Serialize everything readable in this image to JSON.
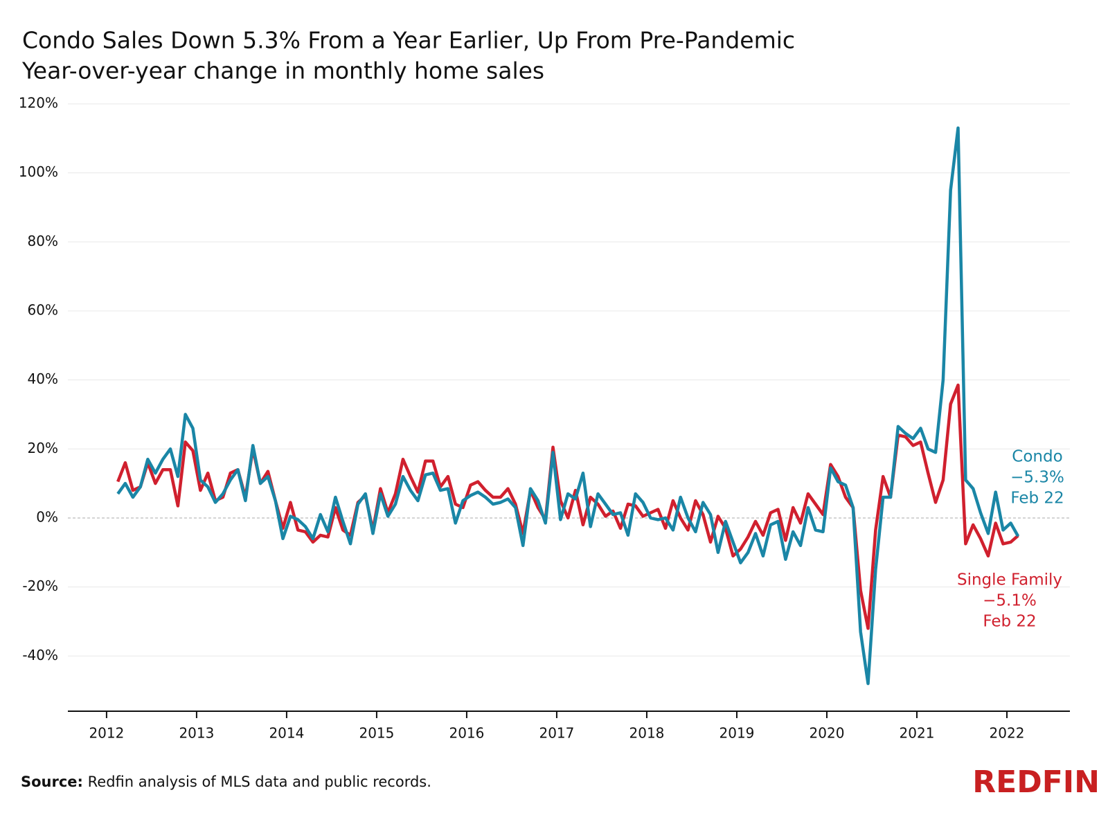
{
  "chart_data": {
    "type": "line",
    "title": "Condo Sales Down 5.3% From a Year Earlier, Up From Pre-Pandemic",
    "subtitle": "Year-over-year change in monthly home sales",
    "x": [
      2012.125,
      2012.208,
      2012.292,
      2012.375,
      2012.458,
      2012.542,
      2012.625,
      2012.708,
      2012.792,
      2012.875,
      2012.958,
      2013.042,
      2013.125,
      2013.208,
      2013.292,
      2013.375,
      2013.458,
      2013.542,
      2013.625,
      2013.708,
      2013.792,
      2013.875,
      2013.958,
      2014.042,
      2014.125,
      2014.208,
      2014.292,
      2014.375,
      2014.458,
      2014.542,
      2014.625,
      2014.708,
      2014.792,
      2014.875,
      2014.958,
      2015.042,
      2015.125,
      2015.208,
      2015.292,
      2015.375,
      2015.458,
      2015.542,
      2015.625,
      2015.708,
      2015.792,
      2015.875,
      2015.958,
      2016.042,
      2016.125,
      2016.208,
      2016.292,
      2016.375,
      2016.458,
      2016.542,
      2016.625,
      2016.708,
      2016.792,
      2016.875,
      2016.958,
      2017.042,
      2017.125,
      2017.208,
      2017.292,
      2017.375,
      2017.458,
      2017.542,
      2017.625,
      2017.708,
      2017.792,
      2017.875,
      2017.958,
      2018.042,
      2018.125,
      2018.208,
      2018.292,
      2018.375,
      2018.458,
      2018.542,
      2018.625,
      2018.708,
      2018.792,
      2018.875,
      2018.958,
      2019.042,
      2019.125,
      2019.208,
      2019.292,
      2019.375,
      2019.458,
      2019.542,
      2019.625,
      2019.708,
      2019.792,
      2019.875,
      2019.958,
      2020.042,
      2020.125,
      2020.208,
      2020.292,
      2020.375,
      2020.458,
      2020.542,
      2020.625,
      2020.708,
      2020.792,
      2020.875,
      2020.958,
      2021.042,
      2021.125,
      2021.208,
      2021.292,
      2021.375,
      2021.458,
      2021.542,
      2021.625,
      2021.708,
      2021.792,
      2021.875,
      2021.958,
      2022.042,
      2022.125
    ],
    "series": [
      {
        "name": "Single Family",
        "color": "#d0202e",
        "values": [
          10.5,
          16,
          8,
          9,
          16,
          10,
          14,
          14,
          3.5,
          22,
          19.5,
          8,
          13,
          5,
          6,
          13,
          14,
          6,
          20,
          10,
          13.5,
          5,
          -3,
          4.5,
          -3.5,
          -4,
          -7,
          -5,
          -5.5,
          3,
          -3.5,
          -5,
          4.5,
          6.5,
          -3.5,
          8.5,
          1.5,
          7,
          17,
          12,
          7.5,
          16.5,
          16.5,
          9,
          12,
          4,
          3,
          9.5,
          10.5,
          8,
          6,
          6,
          8.5,
          4,
          -4.5,
          8,
          3,
          -0.5,
          20.5,
          5,
          0,
          8,
          -2,
          6,
          4,
          0.5,
          2,
          -3,
          4,
          3.5,
          0.5,
          1.5,
          2.5,
          -3,
          5,
          0,
          -3.5,
          5,
          1,
          -7,
          0.5,
          -3,
          -11,
          -9,
          -5.5,
          -1,
          -5,
          1.5,
          2.5,
          -6.5,
          3,
          -1.5,
          7,
          4,
          1,
          15.5,
          12,
          6,
          3,
          -21,
          -32,
          -3.5,
          12,
          6,
          24,
          23.5,
          21,
          22,
          13,
          4.5,
          11,
          33,
          38.5,
          -7.5,
          -2,
          -6,
          -11,
          -1.5,
          -7.5,
          -7,
          -5.1
        ]
      },
      {
        "name": "Condo",
        "color": "#1a86a6",
        "values": [
          7,
          10,
          6,
          9,
          17,
          13,
          17,
          20,
          12,
          30,
          26,
          11,
          9,
          4.5,
          7,
          11,
          14,
          5,
          21,
          10,
          12,
          5,
          -6,
          0.5,
          -0.5,
          -2.5,
          -6,
          1,
          -4,
          6,
          -1,
          -7.5,
          4,
          7,
          -4.5,
          7,
          0.5,
          4,
          12,
          8,
          5,
          12.5,
          13,
          8,
          8.5,
          -1.5,
          5,
          6.5,
          7.5,
          6,
          4,
          4.5,
          5.5,
          3,
          -8,
          8.5,
          5,
          -1.5,
          19,
          -0.5,
          7,
          5.5,
          13,
          -2.5,
          7,
          4,
          1,
          1.5,
          -5,
          7,
          4.5,
          0,
          -0.5,
          0,
          -3.5,
          6,
          0,
          -4,
          4.5,
          1,
          -10,
          -1,
          -7,
          -13,
          -10,
          -4.5,
          -11,
          -2,
          -1,
          -12,
          -4,
          -8,
          3,
          -3.5,
          -4,
          14.5,
          10.5,
          9.5,
          3,
          -33,
          -48,
          -15,
          6,
          6,
          26.5,
          24.5,
          23,
          26,
          20,
          19,
          40,
          95,
          113,
          11,
          8.5,
          1.5,
          -4.5,
          7.5,
          -3.5,
          -1.5,
          -5.3
        ]
      }
    ],
    "annotations": [
      [
        "Condo",
        "−5.3%",
        "Feb 22"
      ],
      [
        "Single Family",
        "−5.1%",
        "Feb 22"
      ]
    ],
    "xlim": [
      2011.57,
      2022.7
    ],
    "xticks": [
      2012,
      2013,
      2014,
      2015,
      2016,
      2017,
      2018,
      2019,
      2020,
      2021,
      2022
    ],
    "ylim": [
      -56,
      122
    ],
    "yticks": [
      {
        "value": -40,
        "label": "-40%"
      },
      {
        "value": -20,
        "label": "-20%"
      },
      {
        "value": 0,
        "label": "0%"
      },
      {
        "value": 20,
        "label": "20%"
      },
      {
        "value": 40,
        "label": "40%"
      },
      {
        "value": 60,
        "label": "60%"
      },
      {
        "value": 80,
        "label": "80%"
      },
      {
        "value": 100,
        "label": "100%"
      },
      {
        "value": 120,
        "label": "120%"
      }
    ],
    "grid": true,
    "source_label": "Source:",
    "source": "Redfin analysis of MLS data and public records.",
    "logo": "REDFIN"
  }
}
